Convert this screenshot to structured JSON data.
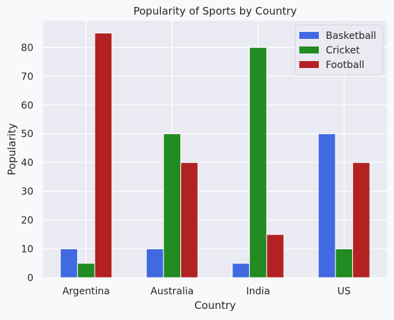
{
  "chart_data": {
    "type": "bar",
    "title": "Popularity of Sports by Country",
    "xlabel": "Country",
    "ylabel": "Popularity",
    "categories": [
      "Argentina",
      "Australia",
      "India",
      "US"
    ],
    "series": [
      {
        "name": "Basketball",
        "color": "#4169e1",
        "values": [
          10,
          10,
          5,
          50
        ]
      },
      {
        "name": "Cricket",
        "color": "#228b22",
        "values": [
          5,
          50,
          80,
          10
        ]
      },
      {
        "name": "Football",
        "color": "#b22222",
        "values": [
          85,
          40,
          15,
          40
        ]
      }
    ],
    "ylim": [
      0,
      89.25
    ],
    "yticks": [
      0,
      10,
      20,
      30,
      40,
      50,
      60,
      70,
      80
    ],
    "grid": true,
    "legend_position": "top-right",
    "plot_background": "#eaeaf2",
    "page_background": "#f7f9fb"
  }
}
